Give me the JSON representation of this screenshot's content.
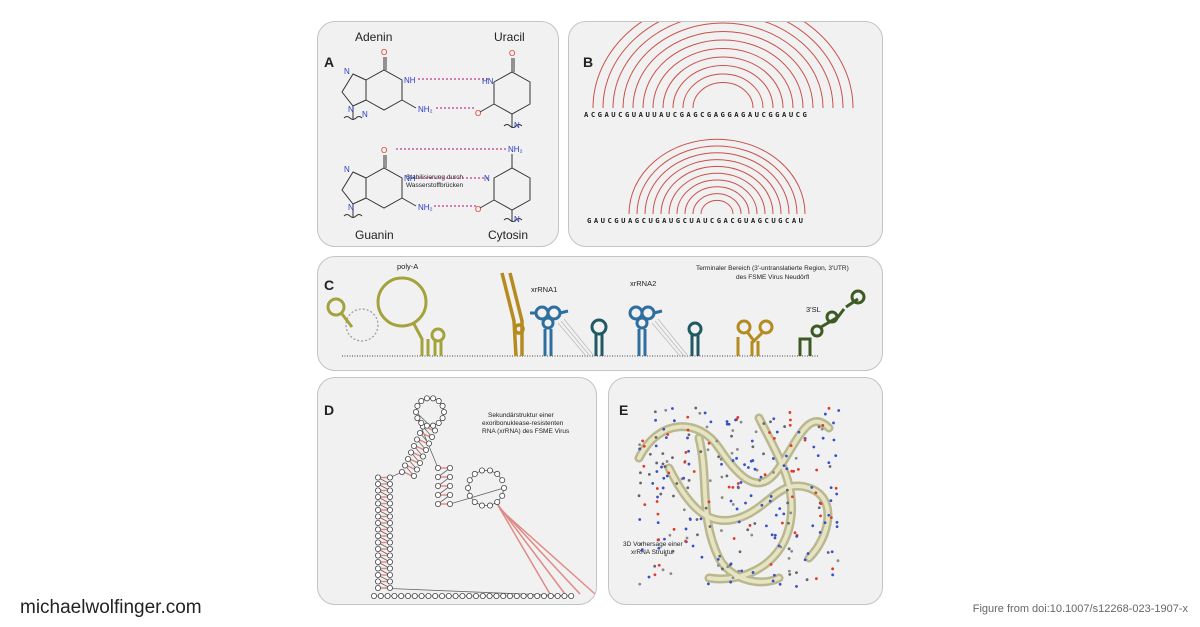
{
  "panelA": {
    "label": "A",
    "adenine": "Adenin",
    "uracil": "Uracil",
    "guanine": "Guanin",
    "cytosine": "Cytosin",
    "note_line1": "Stabilisierung durch",
    "note_line2": "Wasserstoffbrücken",
    "atoms": {
      "O": "O",
      "N": "N",
      "NH": "NH",
      "HN": "HN",
      "NH2": "NH₂"
    }
  },
  "panelB": {
    "label": "B",
    "seq1": "ACGAUCGUAUUAUCGAGCGAGGAGAUCGGAUCG",
    "seq2": "GAUCGUAGCUGAUGCUAUCGACGUAGCUGCAU"
  },
  "panelC": {
    "label": "C",
    "polyA": "poly-A",
    "xrRNA1": "xrRNA1",
    "xrRNA2": "xrRNA2",
    "sl3": "3'SL",
    "region_line1": "Terminaler Bereich (3'-untranslatierte Region, 3'UTR)",
    "region_line2": "des FSME Virus Neudörfl"
  },
  "panelD": {
    "label": "D",
    "line1": "Sekundärstruktur einer",
    "line2": "exoribonuklease-resistenten",
    "line3": "RNA (xrRNA) des FSME Virus"
  },
  "panelE": {
    "label": "E",
    "line1": "3D Vorhersage einer",
    "line2": "xrRNA Struktur"
  },
  "footer": {
    "site": "michaelwolfinger.com",
    "credit": "Figure from doi:10.1007/s12268-023-1907-x"
  },
  "colors": {
    "panel_bg": "#f1f1f1",
    "arc": "#c9504a",
    "hbond": "#c0408a",
    "oxygen": "#e03020",
    "nitrogen": "#2a3cc0",
    "olive": "#a4a23c",
    "gold": "#b58a1f",
    "blue": "#2f6fa0",
    "teal": "#1f5a63",
    "darkgreen": "#3e5a24",
    "ribbon": "#d9d8b4"
  }
}
